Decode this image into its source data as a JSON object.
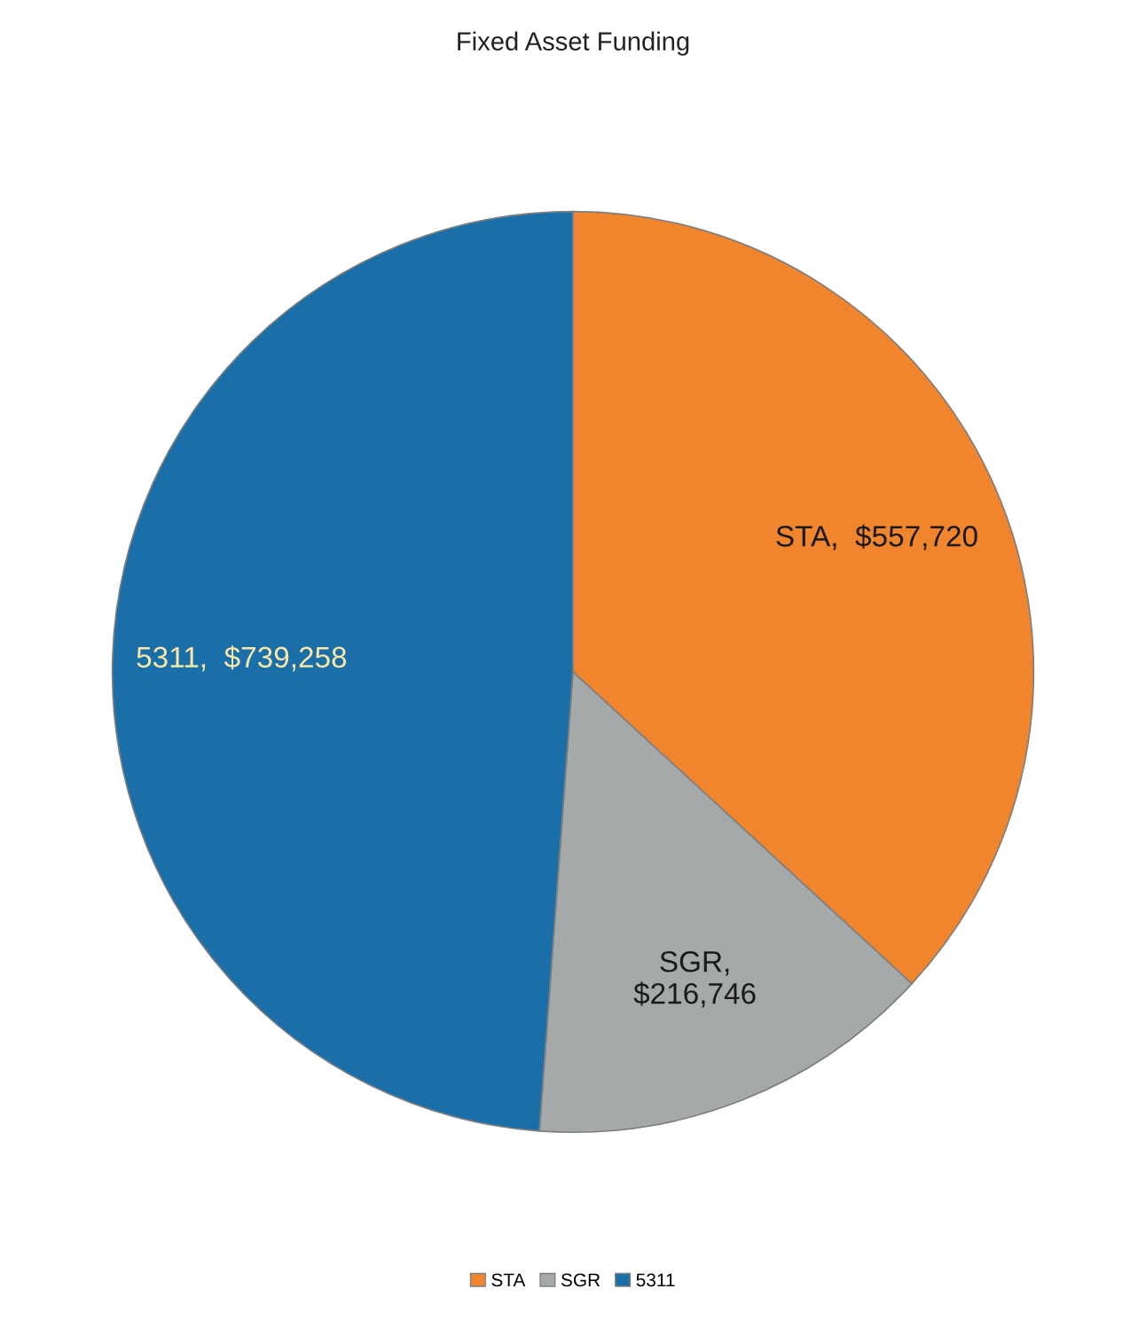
{
  "chart_data": {
    "type": "pie",
    "title": "Fixed Asset Funding",
    "categories": [
      "STA",
      "SGR",
      "5311"
    ],
    "values": [
      557720,
      216746,
      739258
    ],
    "colors": [
      "#f0852d",
      "#a5a9aa",
      "#1a6fa8"
    ],
    "value_labels": [
      "STA,  $557,720",
      "SGR,\n$216,746",
      "5311,  $739,258"
    ],
    "legend": "bottom"
  }
}
